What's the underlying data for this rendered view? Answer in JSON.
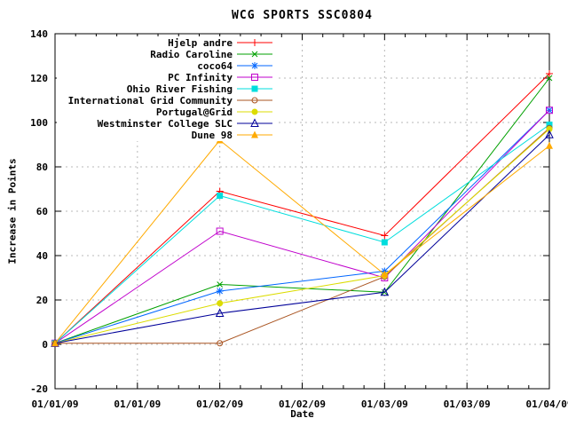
{
  "title": "WCG SPORTS SSC0804",
  "axes": {
    "x_label": "Date",
    "y_label": "Increase in Points",
    "x_tick_labels": [
      "01/01/09",
      "01/01/09",
      "01/02/09",
      "01/02/09",
      "01/03/09",
      "01/03/09",
      "01/04/09"
    ],
    "x_tick_positions": [
      0,
      1,
      2,
      3,
      4,
      5,
      6
    ],
    "y_tick_labels": [
      "-20",
      "0",
      "20",
      "40",
      "60",
      "80",
      "100",
      "120",
      "140"
    ],
    "y_ticks": [
      -20,
      0,
      20,
      40,
      60,
      80,
      100,
      120,
      140
    ],
    "y_range": [
      -20,
      140
    ],
    "minor_x_divisions": 4
  },
  "chart_data": {
    "type": "line",
    "title": "WCG SPORTS SSC0804",
    "xlabel": "Date",
    "ylabel": "Increase in Points",
    "ylim": [
      -20,
      140
    ],
    "grid": true,
    "legend_position": "top-left-inside",
    "x": [
      "01/01/09",
      "01/02/09",
      "01/03/09",
      "01/04/09"
    ],
    "x_positions": [
      0,
      2,
      4,
      6
    ],
    "series": [
      {
        "name": "Hjelp andre",
        "color": "#ff0000",
        "marker": "plus",
        "values": [
          0.5,
          69,
          49,
          122
        ]
      },
      {
        "name": "Radio Caroline",
        "color": "#00a000",
        "marker": "cross",
        "values": [
          0.5,
          27,
          23.5,
          120
        ]
      },
      {
        "name": "coco64",
        "color": "#0066ff",
        "marker": "asterisk",
        "values": [
          0.5,
          24,
          33,
          105.5
        ]
      },
      {
        "name": "PC Infinity",
        "color": "#c000cc",
        "marker": "square-open",
        "values": [
          0.5,
          51,
          30,
          105.5
        ]
      },
      {
        "name": "Ohio River Fishing",
        "color": "#00dddd",
        "marker": "square-filled",
        "values": [
          0.5,
          67,
          46,
          99
        ]
      },
      {
        "name": "International Grid Community",
        "color": "#aa5522",
        "marker": "circle-open",
        "values": [
          0.5,
          0.5,
          30.5,
          97.5
        ]
      },
      {
        "name": "Portugal@Grid",
        "color": "#dcdc00",
        "marker": "circle-filled",
        "values": [
          0.5,
          18.5,
          31,
          97
        ]
      },
      {
        "name": "Westminster College SLC",
        "color": "#000099",
        "marker": "triangle-open",
        "values": [
          0.5,
          14,
          23.5,
          94.5
        ]
      },
      {
        "name": "Dune 98",
        "color": "#ffaa00",
        "marker": "triangle-filled",
        "values": [
          0.5,
          92,
          31.5,
          89.5
        ]
      }
    ]
  },
  "colors": {
    "background": "#ffffff",
    "axis": "#000000",
    "grid": "#b8b8b8",
    "text": "#000000"
  }
}
